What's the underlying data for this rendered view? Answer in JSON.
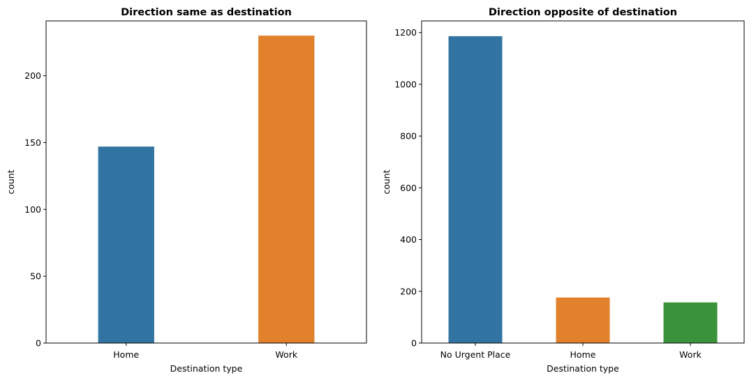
{
  "chart_data": [
    {
      "type": "bar",
      "title": "Direction same as destination",
      "xlabel": "Destination type",
      "ylabel": "count",
      "categories": [
        "Home",
        "Work"
      ],
      "values": [
        147,
        230
      ],
      "colors": [
        "#3274a1",
        "#e1812c"
      ],
      "ylim": [
        0,
        241
      ],
      "yticks": [
        0,
        50,
        100,
        150,
        200
      ],
      "grid": false,
      "legend": "none"
    },
    {
      "type": "bar",
      "title": "Direction opposite of destination",
      "xlabel": "Destination type",
      "ylabel": "count",
      "categories": [
        "No Urgent Place",
        "Home",
        "Work"
      ],
      "values": [
        1186,
        176,
        157
      ],
      "colors": [
        "#3274a1",
        "#e1812c",
        "#3a923a"
      ],
      "ylim": [
        0,
        1245
      ],
      "yticks": [
        0,
        200,
        400,
        600,
        800,
        1000,
        1200
      ],
      "grid": false,
      "legend": "none"
    }
  ]
}
